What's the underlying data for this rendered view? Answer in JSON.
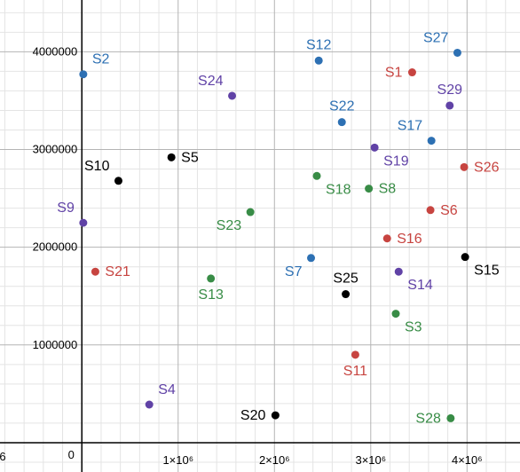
{
  "chart_data": {
    "type": "scatter",
    "title": "",
    "xlabel": "",
    "ylabel": "",
    "xlim": [
      -850000,
      4550000
    ],
    "ylim": [
      -300000,
      4530000
    ],
    "grid": true,
    "x_ticks": [
      {
        "value": 0,
        "label": "0"
      },
      {
        "value": 1000000,
        "label": "1×10⁶"
      },
      {
        "value": 2000000,
        "label": "2×10⁶"
      },
      {
        "value": 3000000,
        "label": "3×10⁶"
      },
      {
        "value": 4000000,
        "label": "4×10⁶"
      }
    ],
    "x_edge_label": "6",
    "y_ticks": [
      {
        "value": 1000000,
        "label": "1000000"
      },
      {
        "value": 2000000,
        "label": "2000000"
      },
      {
        "value": 3000000,
        "label": "3000000"
      },
      {
        "value": 4000000,
        "label": "4000000"
      }
    ],
    "colors": {
      "red": "#c74440",
      "blue": "#2d70b3",
      "green": "#388c46",
      "purple": "#6042a6",
      "black": "#000000"
    },
    "points": [
      {
        "label": "S1",
        "x": 3430000,
        "y": 3790000,
        "color": "red",
        "label_pos": "left"
      },
      {
        "label": "S2",
        "x": 15000,
        "y": 3770000,
        "color": "blue",
        "label_pos": "above-right"
      },
      {
        "label": "S3",
        "x": 3260000,
        "y": 1320000,
        "color": "green",
        "label_pos": "below-right"
      },
      {
        "label": "S4",
        "x": 700000,
        "y": 390000,
        "color": "purple",
        "label_pos": "above-right"
      },
      {
        "label": "S5",
        "x": 930000,
        "y": 2920000,
        "color": "black",
        "label_pos": "right"
      },
      {
        "label": "S6",
        "x": 3620000,
        "y": 2380000,
        "color": "red",
        "label_pos": "right"
      },
      {
        "label": "S7",
        "x": 2380000,
        "y": 1890000,
        "color": "blue",
        "label_pos": "below-left"
      },
      {
        "label": "S8",
        "x": 2980000,
        "y": 2600000,
        "color": "green",
        "label_pos": "right"
      },
      {
        "label": "S9",
        "x": 15000,
        "y": 2250000,
        "color": "purple",
        "label_pos": "above-left"
      },
      {
        "label": "S10",
        "x": 380000,
        "y": 2680000,
        "color": "black",
        "label_pos": "above-left"
      },
      {
        "label": "S11",
        "x": 2840000,
        "y": 900000,
        "color": "red",
        "label_pos": "below"
      },
      {
        "label": "S12",
        "x": 2460000,
        "y": 3910000,
        "color": "blue",
        "label_pos": "above"
      },
      {
        "label": "S13",
        "x": 1340000,
        "y": 1680000,
        "color": "green",
        "label_pos": "below"
      },
      {
        "label": "S14",
        "x": 3290000,
        "y": 1750000,
        "color": "purple",
        "label_pos": "below-right"
      },
      {
        "label": "S15",
        "x": 3980000,
        "y": 1900000,
        "color": "black",
        "label_pos": "below-right"
      },
      {
        "label": "S16",
        "x": 3170000,
        "y": 2090000,
        "color": "red",
        "label_pos": "right"
      },
      {
        "label": "S17",
        "x": 3630000,
        "y": 3090000,
        "color": "blue",
        "label_pos": "above-left"
      },
      {
        "label": "S18",
        "x": 2440000,
        "y": 2730000,
        "color": "green",
        "label_pos": "below-right"
      },
      {
        "label": "S19",
        "x": 3040000,
        "y": 3020000,
        "color": "purple",
        "label_pos": "below-right"
      },
      {
        "label": "S20",
        "x": 2010000,
        "y": 280000,
        "color": "black",
        "label_pos": "left"
      },
      {
        "label": "S21",
        "x": 140000,
        "y": 1750000,
        "color": "red",
        "label_pos": "right"
      },
      {
        "label": "S22",
        "x": 2700000,
        "y": 3280000,
        "color": "blue",
        "label_pos": "above"
      },
      {
        "label": "S23",
        "x": 1750000,
        "y": 2360000,
        "color": "green",
        "label_pos": "below-left"
      },
      {
        "label": "S24",
        "x": 1560000,
        "y": 3550000,
        "color": "purple",
        "label_pos": "above-left"
      },
      {
        "label": "S25",
        "x": 2740000,
        "y": 1520000,
        "color": "black",
        "label_pos": "above"
      },
      {
        "label": "S26",
        "x": 3970000,
        "y": 2820000,
        "color": "red",
        "label_pos": "right"
      },
      {
        "label": "S27",
        "x": 3900000,
        "y": 3990000,
        "color": "blue",
        "label_pos": "above-left"
      },
      {
        "label": "S28",
        "x": 3830000,
        "y": 250000,
        "color": "green",
        "label_pos": "left"
      },
      {
        "label": "S29",
        "x": 3820000,
        "y": 3450000,
        "color": "purple",
        "label_pos": "above"
      }
    ]
  }
}
